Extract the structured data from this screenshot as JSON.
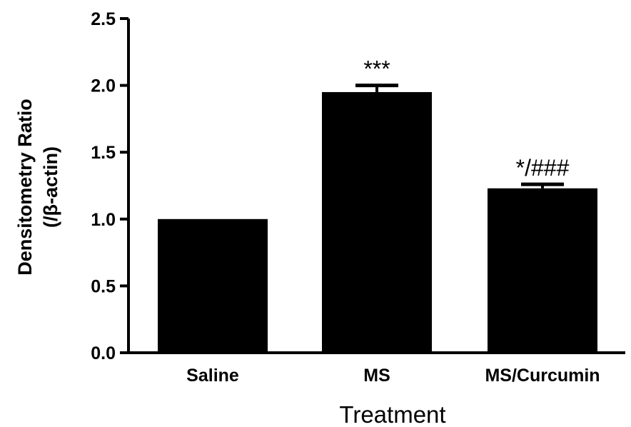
{
  "chart_data": {
    "type": "bar",
    "categories": [
      "Saline",
      "MS",
      "MS/Curcumin"
    ],
    "values": [
      1.0,
      1.95,
      1.23
    ],
    "errors": [
      0.0,
      0.05,
      0.03
    ],
    "annotations": [
      "",
      "***",
      "*/###"
    ],
    "title": "",
    "xlabel": "Treatment",
    "ylabel_line1": "Densitometry Ratio",
    "ylabel_line2": "(/β-actin)",
    "ylim": [
      0,
      2.5
    ],
    "yticks": [
      "0.0",
      "0.5",
      "1.0",
      "1.5",
      "2.0",
      "2.5"
    ],
    "bar_color": "#000000",
    "grid": false
  }
}
